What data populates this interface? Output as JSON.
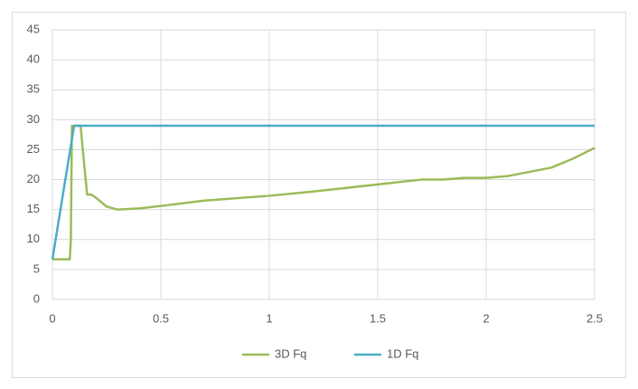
{
  "chart_data": {
    "type": "line",
    "xlim": [
      0,
      2.5
    ],
    "ylim": [
      0,
      45
    ],
    "xticks": [
      0,
      0.5,
      1,
      1.5,
      2,
      2.5
    ],
    "yticks": [
      0,
      5,
      10,
      15,
      20,
      25,
      30,
      35,
      40,
      45
    ],
    "grid": true,
    "legend": "bottom",
    "series": [
      {
        "name": "3D Fq",
        "color": "#9bbb59",
        "x": [
          0,
          0.08,
          0.085,
          0.09,
          0.13,
          0.14,
          0.16,
          0.18,
          0.2,
          0.25,
          0.3,
          0.4,
          0.5,
          0.7,
          1,
          1.2,
          1.5,
          1.7,
          1.8,
          1.9,
          2,
          2.1,
          2.3,
          2.4,
          2.5
        ],
        "values": [
          6.7,
          6.7,
          10,
          29,
          29,
          25,
          17.5,
          17.5,
          17,
          15.5,
          15,
          15.2,
          15.6,
          16.5,
          17.3,
          18,
          19.2,
          20,
          20,
          20.3,
          20.3,
          20.6,
          22,
          23.5,
          25.3
        ]
      },
      {
        "name": "1D Fq",
        "color": "#4bacc6",
        "x": [
          0,
          0.1,
          2.5
        ],
        "values": [
          6.7,
          29,
          29
        ]
      }
    ]
  }
}
